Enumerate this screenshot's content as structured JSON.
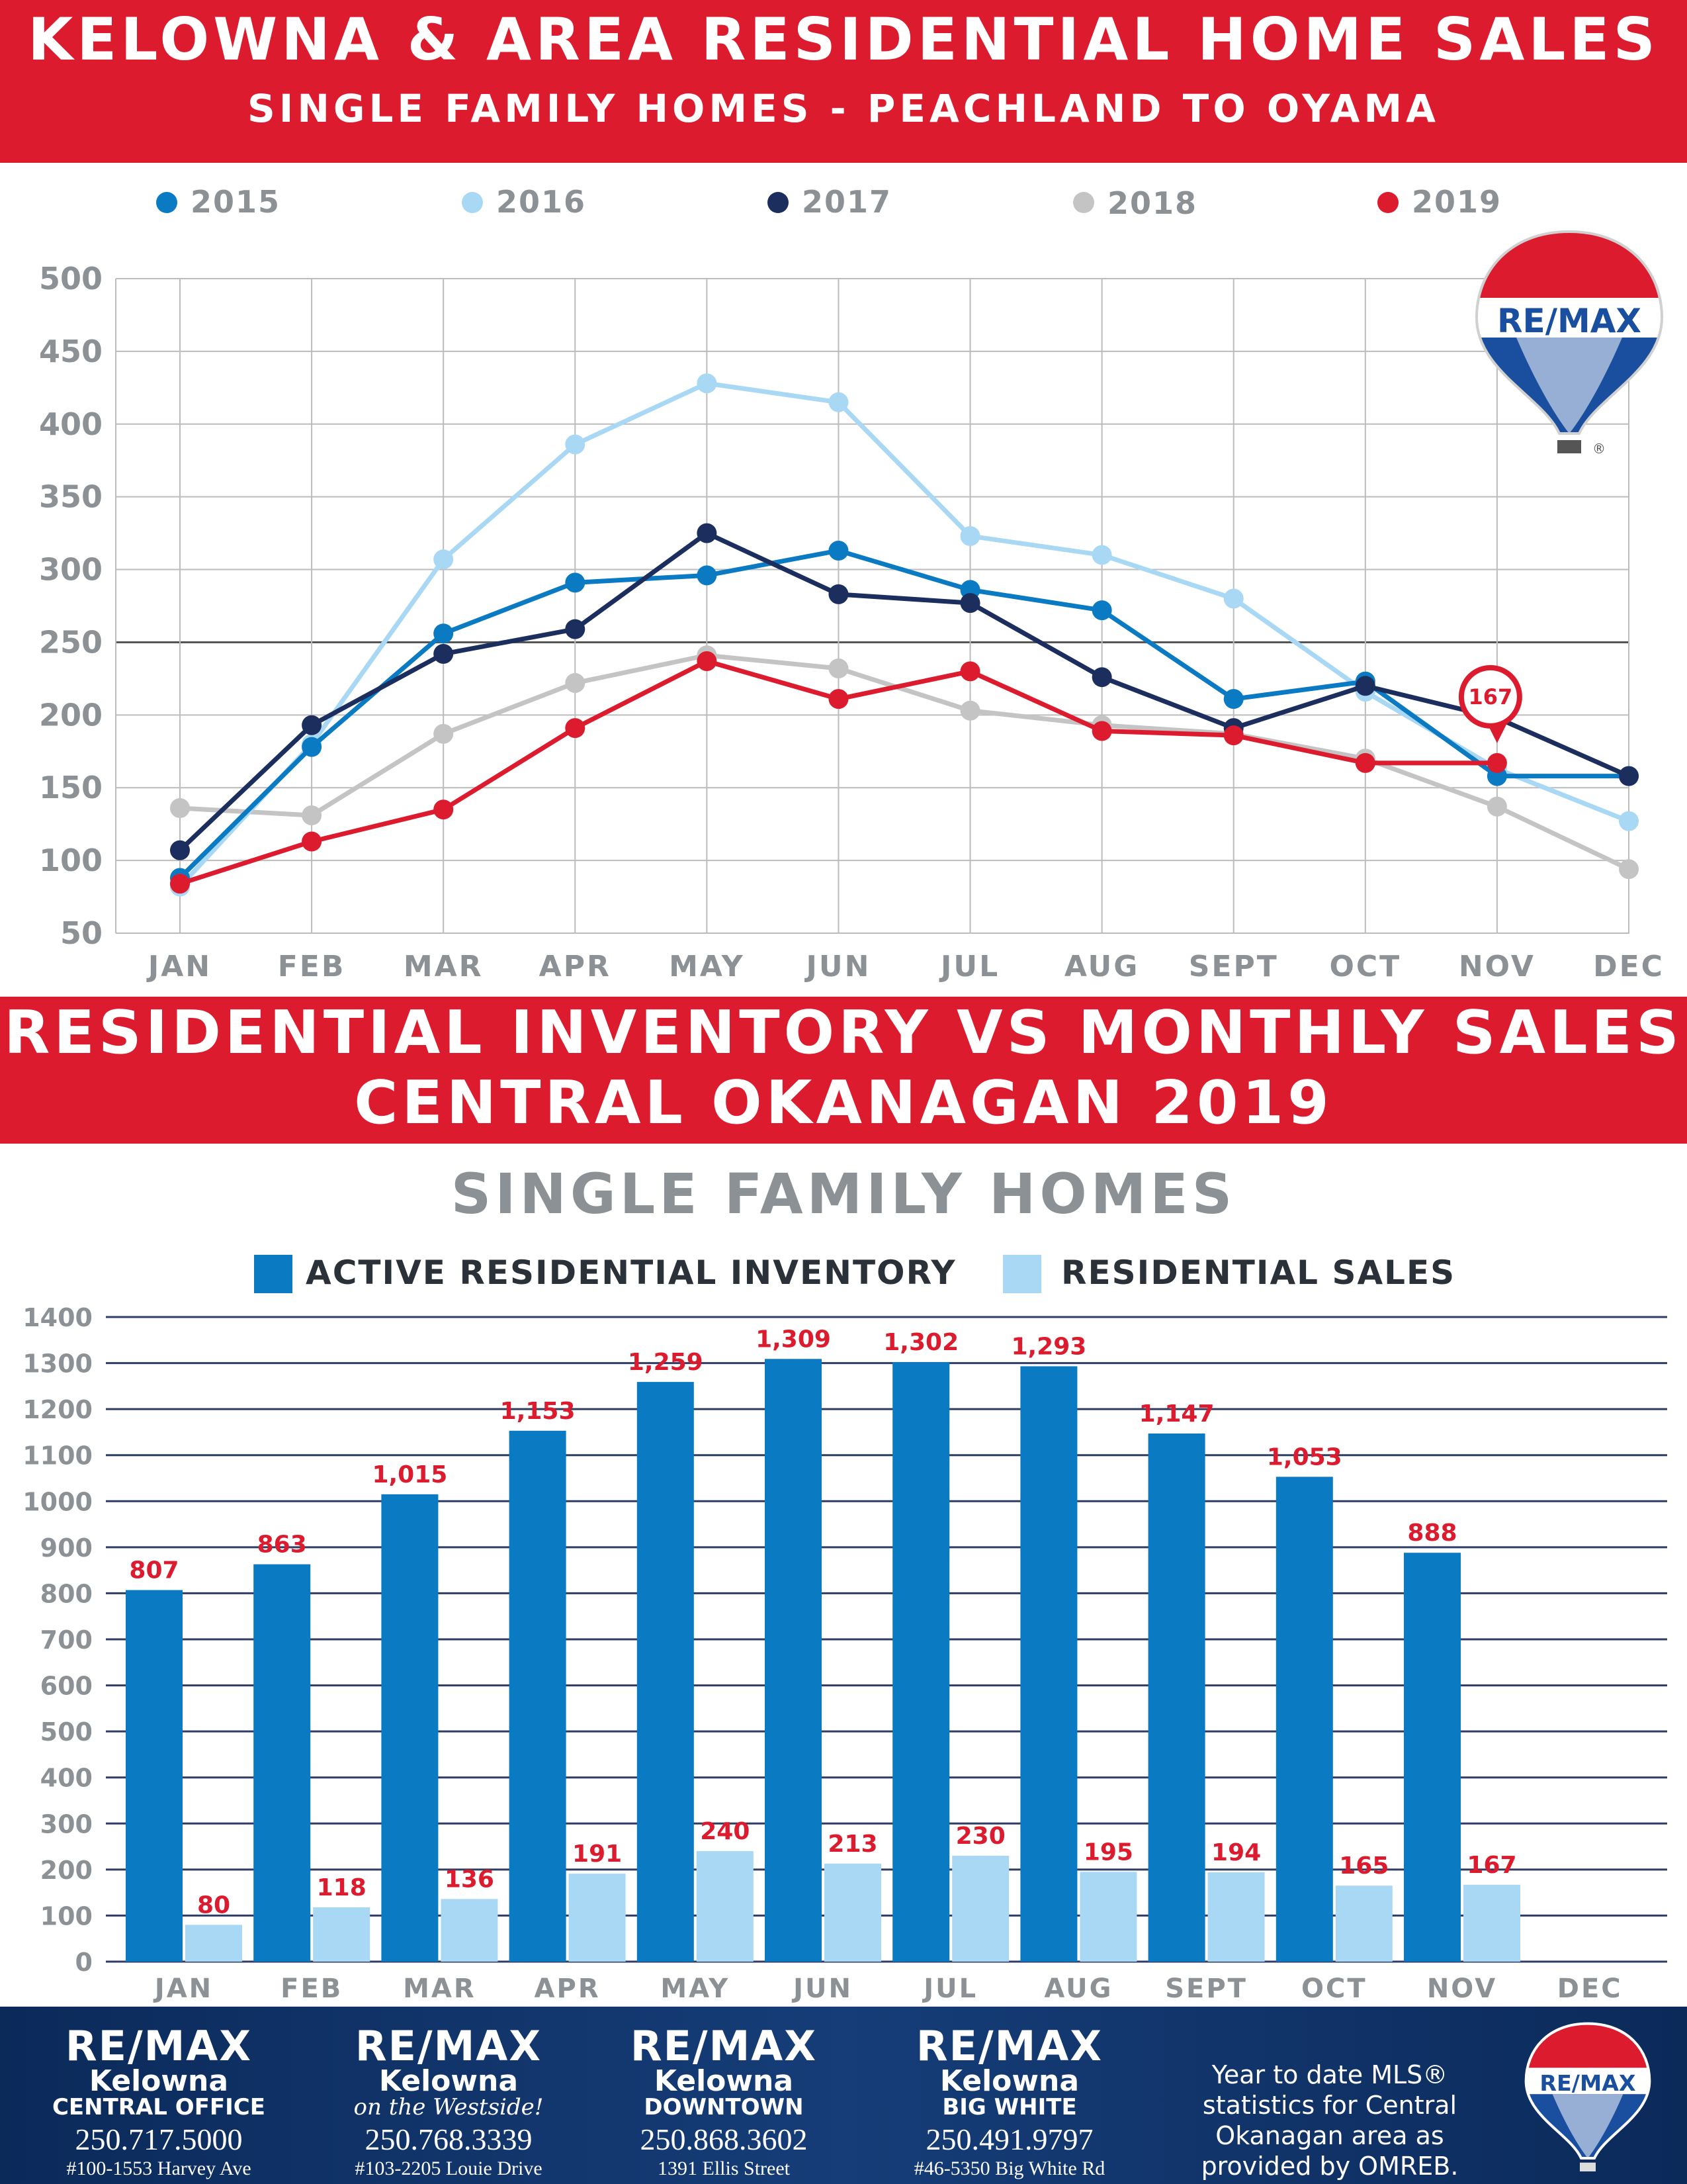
{
  "header": {
    "title": "KELOWNA & AREA RESIDENTIAL HOME SALES",
    "subtitle": "SINGLE FAMILY HOMES - PEACHLAND TO OYAMA"
  },
  "line_legend": [
    {
      "label": "2015",
      "color": "#0a7ac2"
    },
    {
      "label": "2016",
      "color": "#a9d8f5"
    },
    {
      "label": "2017",
      "color": "#1b2e5e"
    },
    {
      "label": "2018",
      "color": "#c4c4c4"
    },
    {
      "label": "2019",
      "color": "#dc1c2e"
    }
  ],
  "logo": {
    "text": "RE/MAX",
    "registered": "®"
  },
  "mid_banner": {
    "line1": "RESIDENTIAL INVENTORY VS MONTHLY SALES",
    "line2": "CENTRAL OKANAGAN 2019"
  },
  "bar_section": {
    "title": "SINGLE FAMILY HOMES",
    "legend": [
      {
        "label": "ACTIVE RESIDENTIAL INVENTORY",
        "color": "#0a7ac2"
      },
      {
        "label": "RESIDENTIAL SALES",
        "color": "#a9d8f5"
      }
    ]
  },
  "chart_data": [
    {
      "type": "line",
      "categories": [
        "JAN",
        "FEB",
        "MAR",
        "APR",
        "MAY",
        "JUN",
        "JUL",
        "AUG",
        "SEPT",
        "OCT",
        "NOV",
        "DEC"
      ],
      "ylim": [
        50,
        500
      ],
      "yticks": [
        "50",
        "100",
        "150",
        "200",
        "250",
        "300",
        "350",
        "400",
        "450",
        "500"
      ],
      "grid": true,
      "legend_position": "top",
      "series": [
        {
          "name": "2015",
          "color": "#0a7ac2",
          "values": [
            88,
            178,
            256,
            291,
            296,
            313,
            286,
            272,
            211,
            223,
            158,
            158
          ]
        },
        {
          "name": "2016",
          "color": "#a9d8f5",
          "values": [
            82,
            180,
            307,
            386,
            428,
            415,
            323,
            310,
            280,
            216,
            163,
            127
          ]
        },
        {
          "name": "2017",
          "color": "#1b2e5e",
          "values": [
            107,
            193,
            242,
            259,
            325,
            283,
            277,
            226,
            191,
            220,
            198,
            158
          ]
        },
        {
          "name": "2018",
          "color": "#c4c4c4",
          "values": [
            136,
            131,
            187,
            222,
            241,
            232,
            203,
            193,
            187,
            170,
            137,
            94
          ]
        },
        {
          "name": "2019",
          "color": "#dc1c2e",
          "values": [
            84,
            113,
            135,
            191,
            237,
            211,
            230,
            189,
            186,
            167,
            167,
            null
          ]
        }
      ],
      "annotation": {
        "label": "167",
        "category": "NOV",
        "value": 167
      }
    },
    {
      "type": "bar",
      "categories": [
        "JAN",
        "FEB",
        "MAR",
        "APR",
        "MAY",
        "JUN",
        "JUL",
        "AUG",
        "SEPT",
        "OCT",
        "NOV",
        "DEC"
      ],
      "ylim": [
        0,
        1400
      ],
      "yticks": [
        "0",
        "100",
        "200",
        "300",
        "400",
        "500",
        "600",
        "700",
        "800",
        "900",
        "1000",
        "1100",
        "1200",
        "1300",
        "1400"
      ],
      "legend_position": "top",
      "series": [
        {
          "name": "ACTIVE RESIDENTIAL INVENTORY",
          "color": "#0a7ac2",
          "values": [
            807,
            863,
            1015,
            1153,
            1259,
            1309,
            1302,
            1293,
            1147,
            1053,
            888,
            null
          ],
          "labels": [
            "807",
            "863",
            "1,015",
            "1,153",
            "1,259",
            "1,309",
            "1,302",
            "1,293",
            "1,147",
            "1,053",
            "888",
            ""
          ]
        },
        {
          "name": "RESIDENTIAL SALES",
          "color": "#a9d8f5",
          "values": [
            80,
            118,
            136,
            191,
            240,
            213,
            230,
            195,
            194,
            165,
            167,
            null
          ],
          "labels": [
            "80",
            "118",
            "136",
            "191",
            "240",
            "213",
            "230",
            "195",
            "194",
            "165",
            "167",
            ""
          ]
        }
      ]
    }
  ],
  "footer": {
    "offices": [
      {
        "brand": "RE/MAX",
        "city": "Kelowna",
        "branch": "CENTRAL OFFICE",
        "phone": "250.717.5000",
        "address": "#100-1553 Harvey Ave"
      },
      {
        "brand": "RE/MAX",
        "city": "Kelowna",
        "branch": "on the Westside!",
        "phone": "250.768.3339",
        "address": "#103-2205 Louie Drive"
      },
      {
        "brand": "RE/MAX",
        "city": "Kelowna",
        "branch": "DOWNTOWN",
        "phone": "250.868.3602",
        "address": "1391 Ellis Street"
      },
      {
        "brand": "RE/MAX",
        "city": "Kelowna",
        "branch": "BIG WHITE",
        "phone": "250.491.9797",
        "address": "#46-5350 Big White Rd"
      }
    ],
    "disclaimer": "Year to date MLS® statistics for Central Okanagan area as provided by OMREB."
  }
}
